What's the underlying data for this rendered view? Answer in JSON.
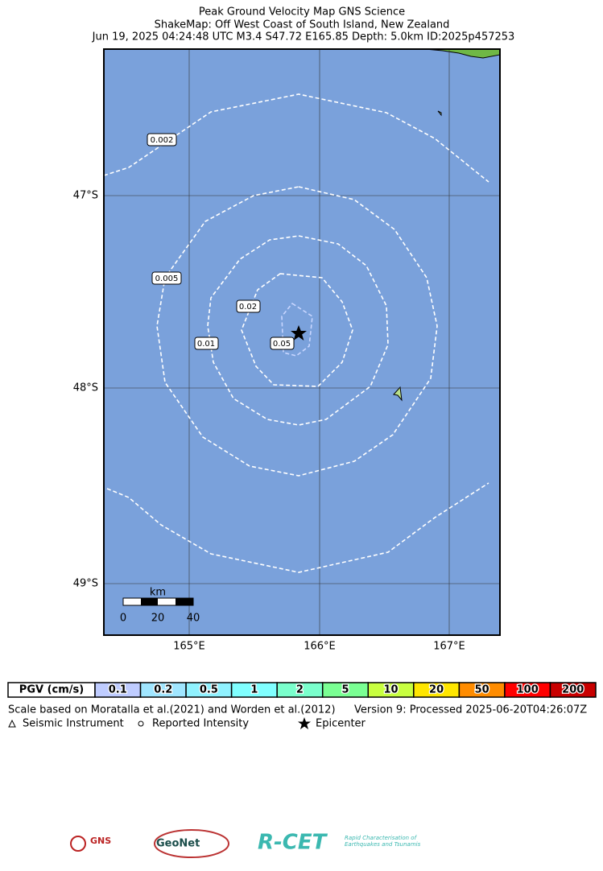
{
  "header": {
    "title": "Peak Ground Velocity Map GNS Science",
    "subtitle": "ShakeMap: Off West Coast of South Island, New Zealand",
    "event": "Jun 19, 2025 04:24:48 UTC M3.4 S47.72 E165.85 Depth: 5.0km ID:2025p457253"
  },
  "map": {
    "lat_labels": [
      "47°S",
      "48°S",
      "49°S"
    ],
    "lon_labels": [
      "165°E",
      "166°E",
      "167°E"
    ],
    "contour_labels": [
      "0.002",
      "0.005",
      "0.01",
      "0.02",
      "0.05"
    ],
    "scale_bar": {
      "unit": "km",
      "ticks": [
        "0",
        "20",
        "40"
      ]
    }
  },
  "colorbar": {
    "title": "PGV (cm/s)",
    "levels": [
      {
        "label": "0.1",
        "color": "#bfccff"
      },
      {
        "label": "0.2",
        "color": "#a0e6ff"
      },
      {
        "label": "0.5",
        "color": "#90f2ff"
      },
      {
        "label": "1",
        "color": "#80ffff"
      },
      {
        "label": "2",
        "color": "#7affcc"
      },
      {
        "label": "5",
        "color": "#7aff93"
      },
      {
        "label": "10",
        "color": "#c8ff40"
      },
      {
        "label": "20",
        "color": "#ffe600"
      },
      {
        "label": "50",
        "color": "#ff8c00"
      },
      {
        "label": "100",
        "color": "#ff0000"
      },
      {
        "label": "200",
        "color": "#c80000"
      }
    ]
  },
  "footer": {
    "scale_note": "Scale based on Moratalla et al.(2021) and Worden et al.(2012)",
    "version": "Version 9: Processed 2025-06-20T04:26:07Z",
    "legend": [
      "Seismic Instrument",
      "Reported Intensity",
      "Epicenter"
    ]
  },
  "logos": {
    "gns": "GNS",
    "geonet": "GeoNet",
    "rcet": "R-CET",
    "rcet_sub": "Rapid Characterisation of Earthquakes and Tsunamis"
  }
}
